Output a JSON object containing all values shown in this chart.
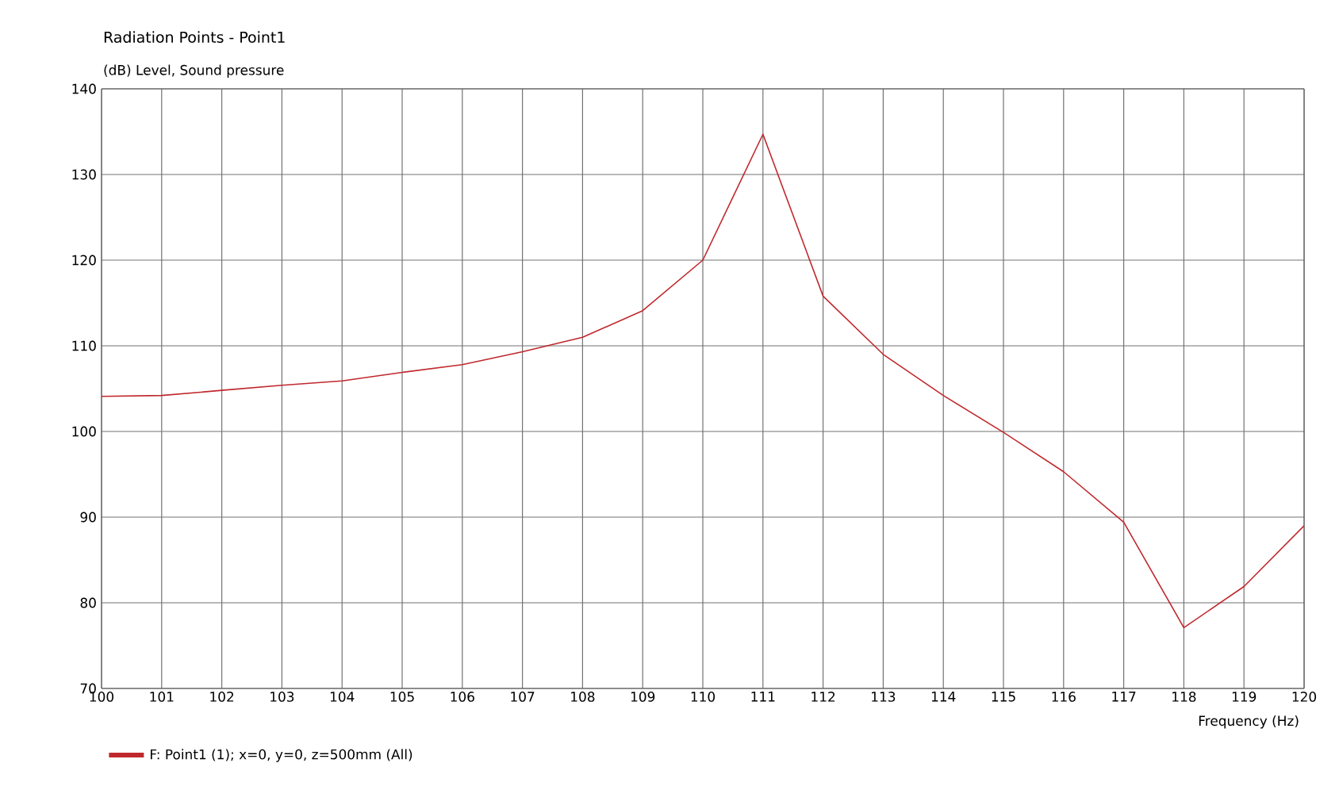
{
  "chart_data": {
    "type": "line",
    "title": "Radiation Points - Point1",
    "ylabel": "(dB)  Level, Sound pressure",
    "xlabel": "Frequency  (Hz)",
    "x": [
      100,
      101,
      102,
      103,
      104,
      105,
      106,
      107,
      108,
      109,
      110,
      111,
      112,
      113,
      114,
      115,
      116,
      117,
      118,
      119,
      120
    ],
    "series": [
      {
        "name": "F: Point1 (1); x=0, y=0, z=500mm  (All)",
        "color": "#c0282d",
        "values": [
          104.1,
          104.2,
          104.8,
          105.4,
          105.9,
          106.9,
          107.8,
          109.3,
          111.0,
          114.1,
          120.0,
          134.7,
          115.8,
          109.0,
          104.2,
          99.9,
          95.3,
          89.4,
          77.1,
          81.9,
          89.0
        ]
      }
    ],
    "xlim": [
      100,
      120
    ],
    "ylim": [
      70,
      140
    ],
    "xticks": [
      100,
      101,
      102,
      103,
      104,
      105,
      106,
      107,
      108,
      109,
      110,
      111,
      112,
      113,
      114,
      115,
      116,
      117,
      118,
      119,
      120
    ],
    "yticks": [
      70,
      80,
      90,
      100,
      110,
      120,
      130,
      140
    ],
    "grid": true,
    "legend": "bottom left"
  }
}
